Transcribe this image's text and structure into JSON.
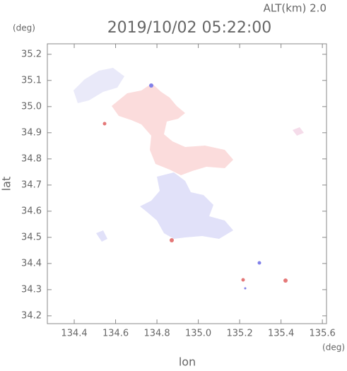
{
  "plot": {
    "title": "2019/10/02 05:22:00",
    "altitude_label": "ALT(km)  2.0",
    "y_unit": "(deg)",
    "x_unit": "(deg)",
    "xlabel": "lon",
    "ylabel": "lat",
    "xlim": [
      134.27,
      135.62
    ],
    "ylim": [
      34.17,
      35.24
    ],
    "xticks": [
      134.4,
      134.6,
      134.8,
      {
        "value": 135,
        "label": "135.0"
      },
      135.2,
      135.4,
      135.6
    ],
    "yticks": [
      34.2,
      34.3,
      34.4,
      34.5,
      34.6,
      34.7,
      34.8,
      34.9,
      {
        "value": 35,
        "label": "35.0"
      },
      35.1,
      35.2
    ]
  }
}
